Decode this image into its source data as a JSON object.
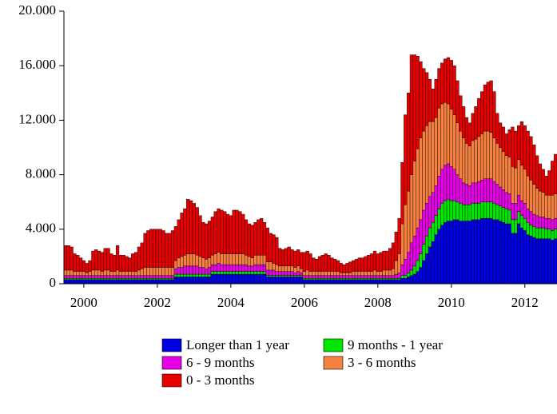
{
  "chart_data": {
    "type": "stacked-bar",
    "categories": [
      null,
      null,
      null,
      null,
      null,
      null,
      "2000",
      null,
      null,
      null,
      null,
      null,
      null,
      null,
      null,
      null,
      null,
      null,
      null,
      null,
      null,
      null,
      null,
      null,
      null,
      null,
      null,
      null,
      null,
      null,
      "2002",
      null,
      null,
      null,
      null,
      null,
      null,
      null,
      null,
      null,
      null,
      null,
      null,
      null,
      null,
      null,
      null,
      null,
      null,
      null,
      null,
      null,
      null,
      null,
      "2004",
      null,
      null,
      null,
      null,
      null,
      null,
      null,
      null,
      null,
      null,
      null,
      null,
      null,
      null,
      null,
      null,
      null,
      null,
      null,
      null,
      null,
      null,
      null,
      "2006",
      null,
      null,
      null,
      null,
      null,
      null,
      null,
      null,
      null,
      null,
      null,
      null,
      null,
      null,
      null,
      null,
      null,
      null,
      null,
      null,
      null,
      null,
      null,
      "2008",
      null,
      null,
      null,
      null,
      null,
      null,
      null,
      null,
      null,
      null,
      null,
      null,
      null,
      null,
      null,
      null,
      null,
      null,
      null,
      null,
      null,
      null,
      null,
      "2010",
      null,
      null,
      null,
      null,
      null,
      null,
      null,
      null,
      null,
      null,
      null,
      null,
      null,
      null,
      null,
      null,
      null,
      null,
      null,
      null,
      null,
      null,
      null,
      "2012",
      null,
      null,
      null,
      null,
      null,
      null,
      null,
      null,
      null,
      null
    ],
    "series": [
      {
        "name": "Longer than 1 year",
        "color": "#0000e6",
        "values": [
          300,
          300,
          300,
          300,
          300,
          300,
          300,
          300,
          300,
          300,
          300,
          300,
          300,
          300,
          300,
          300,
          300,
          300,
          300,
          300,
          300,
          300,
          300,
          300,
          300,
          300,
          300,
          300,
          300,
          300,
          300,
          300,
          300,
          300,
          300,
          300,
          500,
          500,
          500,
          500,
          500,
          500,
          500,
          500,
          500,
          500,
          500,
          500,
          700,
          700,
          700,
          700,
          700,
          700,
          700,
          700,
          700,
          700,
          700,
          700,
          700,
          700,
          700,
          700,
          700,
          700,
          500,
          500,
          500,
          500,
          500,
          500,
          500,
          500,
          500,
          500,
          500,
          500,
          300,
          300,
          300,
          300,
          300,
          300,
          300,
          300,
          300,
          300,
          300,
          300,
          300,
          300,
          300,
          300,
          300,
          300,
          300,
          300,
          300,
          300,
          300,
          300,
          300,
          300,
          300,
          300,
          300,
          300,
          300,
          300,
          400,
          400,
          500,
          600,
          700,
          900,
          1200,
          1700,
          2200,
          2700,
          3100,
          3600,
          4000,
          4300,
          4500,
          4600,
          4600,
          4700,
          4700,
          4600,
          4600,
          4600,
          4600,
          4700,
          4700,
          4700,
          4800,
          4800,
          4800,
          4800,
          4700,
          4700,
          4600,
          4500,
          4400,
          4400,
          3700,
          3700,
          4400,
          4100,
          3900,
          3600,
          3500,
          3400,
          3300,
          3300,
          3300,
          3300,
          3300,
          3200,
          3300
        ]
      },
      {
        "name": "9 months - 1 year",
        "color": "#00e600",
        "values": [
          100,
          100,
          100,
          100,
          100,
          100,
          100,
          100,
          100,
          100,
          100,
          100,
          100,
          100,
          100,
          100,
          100,
          100,
          100,
          100,
          100,
          100,
          100,
          100,
          100,
          100,
          100,
          100,
          100,
          100,
          100,
          100,
          100,
          100,
          100,
          100,
          200,
          200,
          200,
          200,
          200,
          200,
          200,
          200,
          200,
          200,
          200,
          200,
          200,
          200,
          200,
          200,
          200,
          200,
          200,
          200,
          200,
          200,
          200,
          200,
          200,
          200,
          200,
          200,
          200,
          200,
          100,
          100,
          100,
          100,
          100,
          100,
          100,
          100,
          100,
          100,
          100,
          100,
          100,
          100,
          100,
          100,
          100,
          100,
          100,
          100,
          100,
          100,
          100,
          100,
          100,
          100,
          100,
          100,
          100,
          100,
          100,
          100,
          100,
          100,
          100,
          100,
          100,
          100,
          100,
          100,
          100,
          100,
          100,
          100,
          200,
          200,
          300,
          400,
          600,
          800,
          1000,
          1200,
          1300,
          1400,
          1400,
          1400,
          1500,
          1600,
          1600,
          1600,
          1500,
          1400,
          1300,
          1300,
          1200,
          1200,
          1200,
          1200,
          1200,
          1200,
          1200,
          1200,
          1200,
          1200,
          1200,
          1100,
          1100,
          1100,
          1100,
          1000,
          1000,
          1000,
          900,
          900,
          900,
          900,
          800,
          800,
          800,
          800,
          800,
          700,
          700,
          700,
          700
        ]
      },
      {
        "name": "6 - 9 months",
        "color": "#e600e6",
        "values": [
          200,
          200,
          200,
          200,
          200,
          200,
          200,
          200,
          200,
          200,
          200,
          200,
          200,
          200,
          200,
          200,
          200,
          200,
          200,
          200,
          200,
          200,
          200,
          200,
          200,
          200,
          200,
          200,
          200,
          200,
          200,
          200,
          200,
          200,
          200,
          200,
          400,
          500,
          500,
          600,
          600,
          600,
          600,
          600,
          500,
          500,
          400,
          500,
          500,
          500,
          600,
          500,
          500,
          500,
          500,
          500,
          500,
          500,
          500,
          500,
          400,
          400,
          500,
          500,
          500,
          500,
          400,
          400,
          400,
          300,
          300,
          300,
          300,
          300,
          300,
          200,
          300,
          200,
          200,
          200,
          200,
          200,
          200,
          200,
          200,
          200,
          200,
          200,
          200,
          200,
          200,
          200,
          200,
          200,
          200,
          200,
          200,
          200,
          200,
          200,
          200,
          200,
          200,
          200,
          200,
          200,
          200,
          200,
          300,
          400,
          800,
          1200,
          1500,
          2000,
          2200,
          2400,
          2500,
          2500,
          2400,
          2300,
          2200,
          2200,
          2400,
          2500,
          2600,
          2600,
          2500,
          2300,
          2000,
          1800,
          1600,
          1500,
          1400,
          1500,
          1500,
          1600,
          1600,
          1700,
          1700,
          1700,
          1600,
          1500,
          1400,
          1300,
          1200,
          1200,
          1200,
          1200,
          1200,
          1100,
          1100,
          1000,
          1000,
          900,
          900,
          800,
          800,
          800,
          800,
          800,
          800
        ]
      },
      {
        "name": "3 - 6 months",
        "color": "#f58040",
        "values": [
          400,
          400,
          400,
          300,
          300,
          300,
          300,
          200,
          300,
          400,
          400,
          400,
          300,
          400,
          400,
          300,
          300,
          400,
          300,
          300,
          300,
          300,
          300,
          300,
          400,
          500,
          600,
          600,
          600,
          600,
          600,
          600,
          600,
          600,
          600,
          600,
          600,
          700,
          800,
          800,
          900,
          900,
          900,
          800,
          800,
          700,
          700,
          700,
          700,
          800,
          800,
          800,
          800,
          800,
          800,
          800,
          800,
          800,
          800,
          700,
          700,
          600,
          700,
          700,
          700,
          700,
          600,
          600,
          500,
          500,
          400,
          400,
          400,
          400,
          400,
          400,
          400,
          300,
          300,
          400,
          300,
          300,
          300,
          300,
          300,
          300,
          300,
          300,
          300,
          300,
          200,
          200,
          200,
          200,
          300,
          300,
          300,
          300,
          300,
          300,
          300,
          400,
          300,
          300,
          400,
          400,
          400,
          500,
          1000,
          1400,
          3000,
          4000,
          4500,
          5000,
          5500,
          5800,
          6000,
          5800,
          5700,
          5500,
          5200,
          5000,
          5000,
          4800,
          4600,
          4400,
          4200,
          4000,
          3800,
          3500,
          3300,
          3000,
          2900,
          3100,
          3200,
          3300,
          3400,
          3500,
          3500,
          3400,
          3200,
          3000,
          2900,
          2800,
          2700,
          2700,
          2700,
          2600,
          2600,
          2600,
          2500,
          2400,
          2300,
          2200,
          2000,
          1900,
          1800,
          1700,
          1700,
          1800,
          1800
        ]
      },
      {
        "name": "0 - 3 months",
        "color": "#e60000",
        "values": [
          1800,
          1800,
          1700,
          1300,
          1200,
          1000,
          800,
          700,
          800,
          1400,
          1500,
          1400,
          1400,
          1600,
          1600,
          1300,
          1200,
          1800,
          1200,
          1200,
          1100,
          1000,
          1300,
          1400,
          1700,
          1900,
          2500,
          2700,
          2800,
          2800,
          2800,
          2800,
          2700,
          2500,
          2500,
          2700,
          2500,
          2800,
          3200,
          3400,
          4000,
          3900,
          3700,
          3500,
          3000,
          2600,
          2600,
          2700,
          2800,
          3100,
          3200,
          3200,
          3100,
          2900,
          2800,
          3200,
          3200,
          3100,
          2900,
          2600,
          2400,
          2400,
          2400,
          2600,
          2700,
          2400,
          2500,
          2100,
          2100,
          2000,
          1300,
          1200,
          1300,
          1400,
          1200,
          1200,
          1200,
          1200,
          1400,
          1400,
          1300,
          1000,
          900,
          1100,
          1200,
          1300,
          1200,
          1000,
          900,
          800,
          700,
          600,
          700,
          800,
          800,
          900,
          1000,
          1000,
          1100,
          1200,
          1300,
          1400,
          1300,
          1400,
          1400,
          1400,
          1600,
          1900,
          2100,
          2600,
          4500,
          6600,
          7200,
          8800,
          7800,
          6800,
          5600,
          4600,
          3900,
          3100,
          2400,
          2800,
          2900,
          3000,
          3200,
          3400,
          3600,
          3600,
          3100,
          2600,
          2300,
          1900,
          1700,
          2000,
          2400,
          2800,
          3100,
          3400,
          3600,
          3800,
          3400,
          2200,
          1800,
          1800,
          1600,
          2000,
          2900,
          2700,
          2500,
          3200,
          3200,
          3300,
          3200,
          2900,
          2400,
          2000,
          1700,
          1400,
          1800,
          2500,
          2900
        ]
      }
    ],
    "ylim": [
      0,
      20000
    ],
    "yticks": [
      0,
      {
        "value": 4000,
        "label": "4.000"
      },
      {
        "value": 8000,
        "label": "8.000"
      },
      {
        "value": 12000,
        "label": "12.000"
      },
      {
        "value": 16000,
        "label": "16.000"
      },
      {
        "value": 20000,
        "label": "20.000"
      }
    ]
  }
}
